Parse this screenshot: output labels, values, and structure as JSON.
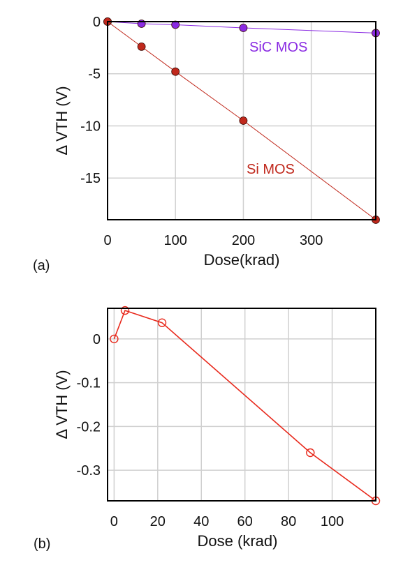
{
  "chart_data": [
    {
      "type": "line",
      "panel_label": "(a)",
      "xlabel": "Dose(krad)",
      "ylabel": "Δ VTH (V)",
      "xlim": [
        0,
        395
      ],
      "ylim": [
        -19,
        0
      ],
      "xticks": [
        0,
        100,
        200,
        300
      ],
      "xtick_labels": [
        "0",
        "100",
        "200",
        "300"
      ],
      "yticks": [
        0,
        -5,
        -10,
        -15
      ],
      "ytick_labels": [
        "0",
        "-5",
        "-10",
        "-15"
      ],
      "grid": true,
      "series": [
        {
          "name": "SiC MOS",
          "color": "#8a2be2",
          "marker": "filled-circle",
          "x": [
            0,
            50,
            100,
            200,
            395
          ],
          "y": [
            0,
            -0.2,
            -0.3,
            -0.6,
            -1.1
          ]
        },
        {
          "name": "Si MOS",
          "color": "#c0281c",
          "marker": "filled-circle",
          "x": [
            0,
            50,
            100,
            200,
            395
          ],
          "y": [
            0,
            -2.4,
            -4.8,
            -9.5,
            -19
          ]
        }
      ]
    },
    {
      "type": "line",
      "panel_label": "(b)",
      "xlabel": "Dose (krad)",
      "ylabel": "Δ VTH (V)",
      "xlim": [
        -3,
        120
      ],
      "ylim": [
        -0.37,
        0.07
      ],
      "xticks": [
        0,
        20,
        40,
        60,
        80,
        100
      ],
      "xtick_labels": [
        "0",
        "20",
        "40",
        "60",
        "80",
        "100"
      ],
      "yticks": [
        0,
        -0.1,
        -0.2,
        -0.3
      ],
      "ytick_labels": [
        "0",
        "-0.1",
        "-0.2",
        "-0.3"
      ],
      "grid": true,
      "series": [
        {
          "color": "#e8291c",
          "marker": "open-circle",
          "x": [
            0,
            5,
            22,
            90,
            120
          ],
          "y": [
            0,
            0.065,
            0.037,
            -0.26,
            -0.37
          ]
        }
      ]
    }
  ]
}
